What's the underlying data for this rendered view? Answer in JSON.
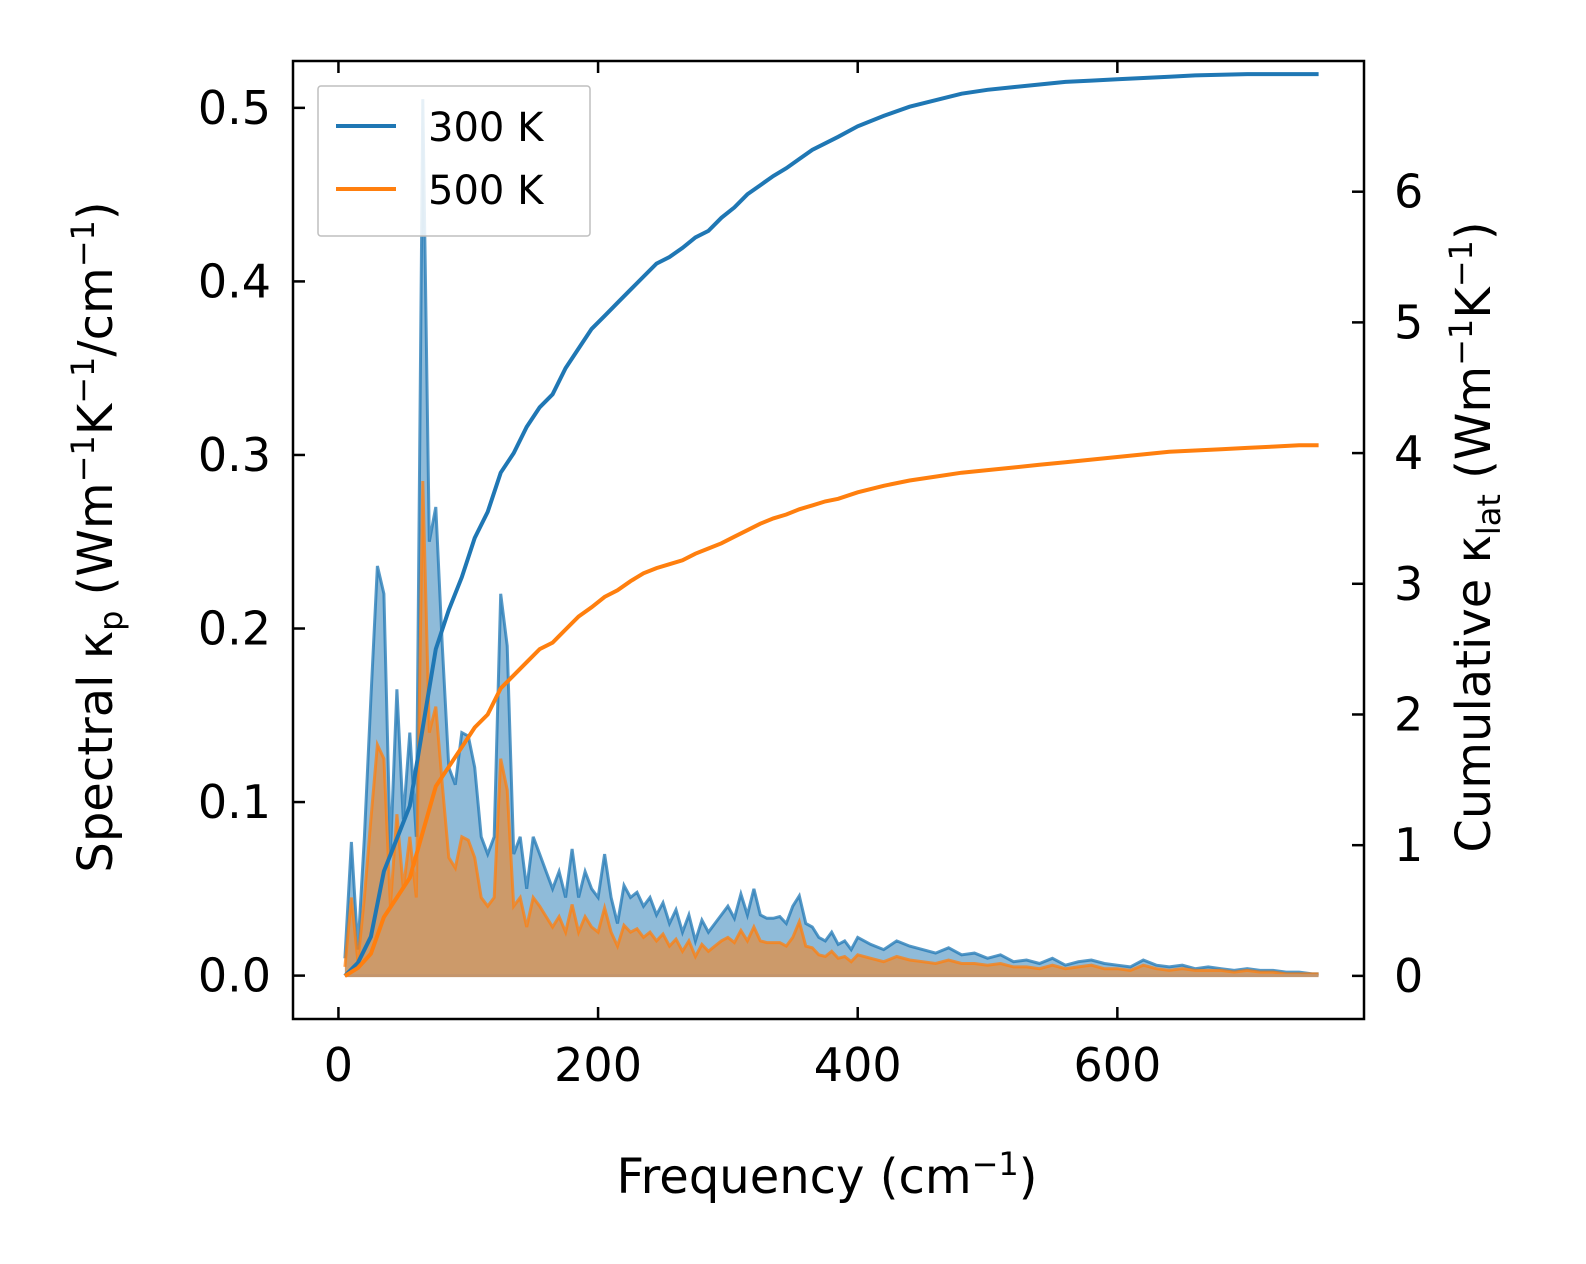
{
  "chart_data": {
    "type": "line",
    "title": "",
    "xlabel": "Frequency (cm",
    "xlabel_sup": "−1",
    "xlabel_end": ")",
    "ylabel_left": {
      "parts": [
        "Spectral κ",
        "p",
        " (Wm",
        "−1",
        "K",
        "−1",
        "/cm",
        "−1",
        ")"
      ]
    },
    "ylabel_right": {
      "parts": [
        "Cumulative κ",
        "lat",
        " (Wm",
        "−1",
        "K",
        "−1",
        ")"
      ]
    },
    "xlim": [
      -35,
      790
    ],
    "ylim_left": [
      -0.025,
      0.527
    ],
    "ylim_right": [
      -0.33,
      7.0
    ],
    "xticks": [
      0,
      200,
      400,
      600
    ],
    "xtick_labels": [
      "0",
      "200",
      "400",
      "600"
    ],
    "yticks_left": [
      0.0,
      0.1,
      0.2,
      0.3,
      0.4,
      0.5
    ],
    "ytick_labels_left": [
      "0.0",
      "0.1",
      "0.2",
      "0.3",
      "0.4",
      "0.5"
    ],
    "yticks_right": [
      0,
      1,
      2,
      3,
      4,
      5,
      6
    ],
    "ytick_labels_right": [
      "0",
      "1",
      "2",
      "3",
      "4",
      "5",
      "6"
    ],
    "legend": {
      "location": "top-left",
      "entries": [
        "300 K",
        "500 K"
      ]
    },
    "colors": {
      "300 K": "#1f77b4",
      "500 K": "#ff7f0e",
      "overlap": "#c4956c"
    },
    "series": [
      {
        "name": "300 K",
        "axis": "left",
        "style": "filled-spectrum",
        "x": [
          5,
          10,
          15,
          20,
          25,
          30,
          35,
          40,
          45,
          50,
          55,
          60,
          65,
          70,
          75,
          80,
          85,
          90,
          95,
          100,
          105,
          110,
          115,
          120,
          125,
          130,
          135,
          140,
          145,
          150,
          155,
          160,
          165,
          170,
          175,
          180,
          185,
          190,
          195,
          200,
          205,
          210,
          215,
          220,
          225,
          230,
          235,
          240,
          245,
          250,
          255,
          260,
          265,
          270,
          275,
          280,
          285,
          290,
          295,
          300,
          305,
          310,
          315,
          320,
          325,
          330,
          335,
          340,
          345,
          350,
          355,
          360,
          365,
          370,
          375,
          380,
          385,
          390,
          395,
          400,
          410,
          420,
          430,
          440,
          450,
          460,
          470,
          480,
          490,
          500,
          510,
          520,
          530,
          540,
          550,
          560,
          570,
          580,
          590,
          600,
          610,
          620,
          630,
          640,
          650,
          660,
          670,
          680,
          690,
          700,
          710,
          720,
          730,
          740,
          750,
          755
        ],
        "y": [
          0.01,
          0.077,
          0.015,
          0.08,
          0.16,
          0.236,
          0.22,
          0.07,
          0.165,
          0.09,
          0.14,
          0.08,
          0.505,
          0.25,
          0.27,
          0.19,
          0.12,
          0.11,
          0.14,
          0.138,
          0.12,
          0.08,
          0.07,
          0.08,
          0.22,
          0.19,
          0.07,
          0.08,
          0.05,
          0.08,
          0.07,
          0.06,
          0.05,
          0.06,
          0.045,
          0.073,
          0.045,
          0.06,
          0.05,
          0.045,
          0.07,
          0.045,
          0.03,
          0.052,
          0.045,
          0.048,
          0.04,
          0.045,
          0.035,
          0.042,
          0.03,
          0.038,
          0.025,
          0.035,
          0.02,
          0.032,
          0.025,
          0.03,
          0.035,
          0.04,
          0.033,
          0.047,
          0.035,
          0.05,
          0.035,
          0.033,
          0.033,
          0.034,
          0.03,
          0.04,
          0.046,
          0.03,
          0.028,
          0.022,
          0.02,
          0.025,
          0.018,
          0.02,
          0.015,
          0.022,
          0.018,
          0.015,
          0.02,
          0.017,
          0.015,
          0.013,
          0.016,
          0.012,
          0.013,
          0.01,
          0.012,
          0.008,
          0.009,
          0.007,
          0.01,
          0.006,
          0.008,
          0.009,
          0.007,
          0.006,
          0.005,
          0.009,
          0.006,
          0.005,
          0.006,
          0.004,
          0.005,
          0.004,
          0.003,
          0.004,
          0.003,
          0.003,
          0.002,
          0.002,
          0.001,
          0.001
        ]
      },
      {
        "name": "500 K",
        "axis": "left",
        "style": "filled-spectrum",
        "x": [
          5,
          10,
          15,
          20,
          25,
          30,
          35,
          40,
          45,
          50,
          55,
          60,
          65,
          70,
          75,
          80,
          85,
          90,
          95,
          100,
          105,
          110,
          115,
          120,
          125,
          130,
          135,
          140,
          145,
          150,
          155,
          160,
          165,
          170,
          175,
          180,
          185,
          190,
          195,
          200,
          205,
          210,
          215,
          220,
          225,
          230,
          235,
          240,
          245,
          250,
          255,
          260,
          265,
          270,
          275,
          280,
          285,
          290,
          295,
          300,
          305,
          310,
          315,
          320,
          325,
          330,
          335,
          340,
          345,
          350,
          355,
          360,
          365,
          370,
          375,
          380,
          385,
          390,
          395,
          400,
          410,
          420,
          430,
          440,
          450,
          460,
          470,
          480,
          490,
          500,
          510,
          520,
          530,
          540,
          550,
          560,
          570,
          580,
          590,
          600,
          610,
          620,
          630,
          640,
          650,
          660,
          670,
          680,
          690,
          700,
          710,
          720,
          730,
          740,
          750,
          755
        ],
        "y": [
          0.005,
          0.045,
          0.008,
          0.045,
          0.09,
          0.133,
          0.125,
          0.04,
          0.093,
          0.05,
          0.08,
          0.045,
          0.285,
          0.14,
          0.155,
          0.11,
          0.068,
          0.062,
          0.08,
          0.078,
          0.068,
          0.045,
          0.04,
          0.045,
          0.125,
          0.107,
          0.04,
          0.045,
          0.028,
          0.045,
          0.04,
          0.034,
          0.028,
          0.034,
          0.025,
          0.041,
          0.025,
          0.034,
          0.028,
          0.025,
          0.039,
          0.025,
          0.017,
          0.029,
          0.025,
          0.027,
          0.022,
          0.025,
          0.02,
          0.024,
          0.017,
          0.021,
          0.014,
          0.02,
          0.011,
          0.018,
          0.014,
          0.017,
          0.02,
          0.022,
          0.019,
          0.026,
          0.02,
          0.028,
          0.02,
          0.019,
          0.019,
          0.019,
          0.017,
          0.022,
          0.031,
          0.017,
          0.016,
          0.012,
          0.011,
          0.014,
          0.01,
          0.011,
          0.008,
          0.012,
          0.01,
          0.008,
          0.011,
          0.009,
          0.008,
          0.007,
          0.009,
          0.007,
          0.007,
          0.006,
          0.007,
          0.005,
          0.005,
          0.004,
          0.006,
          0.004,
          0.005,
          0.006,
          0.004,
          0.004,
          0.003,
          0.006,
          0.004,
          0.003,
          0.004,
          0.003,
          0.003,
          0.003,
          0.002,
          0.003,
          0.002,
          0.002,
          0.001,
          0.001,
          0.001,
          0.001
        ]
      },
      {
        "name": "300 K cumulative",
        "axis": "right",
        "style": "line",
        "x": [
          5,
          15,
          25,
          35,
          45,
          55,
          65,
          75,
          85,
          95,
          105,
          115,
          125,
          135,
          145,
          155,
          165,
          175,
          185,
          195,
          205,
          215,
          225,
          235,
          245,
          255,
          265,
          275,
          285,
          295,
          305,
          315,
          325,
          335,
          345,
          355,
          365,
          375,
          385,
          400,
          420,
          440,
          460,
          480,
          500,
          520,
          540,
          560,
          580,
          600,
          620,
          640,
          660,
          680,
          700,
          720,
          740,
          755
        ],
        "y": [
          0.0,
          0.1,
          0.3,
          0.8,
          1.05,
          1.3,
          1.9,
          2.5,
          2.8,
          3.05,
          3.35,
          3.55,
          3.85,
          4.0,
          4.2,
          4.35,
          4.45,
          4.65,
          4.8,
          4.95,
          5.05,
          5.15,
          5.25,
          5.35,
          5.45,
          5.5,
          5.57,
          5.65,
          5.7,
          5.8,
          5.88,
          5.98,
          6.05,
          6.12,
          6.18,
          6.25,
          6.32,
          6.37,
          6.42,
          6.5,
          6.58,
          6.65,
          6.7,
          6.75,
          6.78,
          6.8,
          6.82,
          6.84,
          6.85,
          6.86,
          6.87,
          6.88,
          6.89,
          6.895,
          6.9,
          6.9,
          6.9,
          6.9
        ]
      },
      {
        "name": "500 K cumulative",
        "axis": "right",
        "style": "line",
        "x": [
          5,
          15,
          25,
          35,
          45,
          55,
          65,
          75,
          85,
          95,
          105,
          115,
          125,
          135,
          145,
          155,
          165,
          175,
          185,
          195,
          205,
          215,
          225,
          235,
          245,
          255,
          265,
          275,
          285,
          295,
          305,
          315,
          325,
          335,
          345,
          355,
          365,
          375,
          385,
          400,
          420,
          440,
          460,
          480,
          500,
          520,
          540,
          560,
          580,
          600,
          620,
          640,
          660,
          680,
          700,
          720,
          740,
          755
        ],
        "y": [
          0.0,
          0.06,
          0.17,
          0.45,
          0.6,
          0.75,
          1.1,
          1.45,
          1.6,
          1.75,
          1.9,
          2.0,
          2.2,
          2.3,
          2.4,
          2.5,
          2.55,
          2.65,
          2.75,
          2.82,
          2.9,
          2.95,
          3.02,
          3.08,
          3.12,
          3.15,
          3.18,
          3.23,
          3.27,
          3.31,
          3.36,
          3.41,
          3.46,
          3.5,
          3.53,
          3.57,
          3.6,
          3.63,
          3.65,
          3.7,
          3.75,
          3.79,
          3.82,
          3.85,
          3.87,
          3.89,
          3.91,
          3.93,
          3.95,
          3.97,
          3.99,
          4.01,
          4.02,
          4.03,
          4.04,
          4.05,
          4.06,
          4.06
        ]
      }
    ]
  }
}
